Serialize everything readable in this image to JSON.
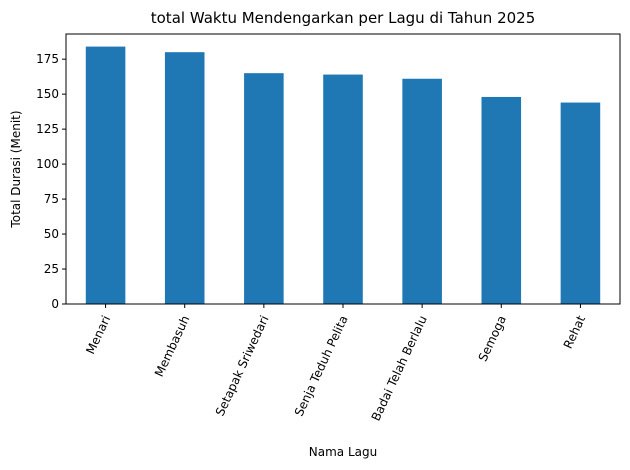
{
  "chart_data": {
    "type": "bar",
    "title": "total Waktu Mendengarkan per Lagu di Tahun 2025",
    "xlabel": "Nama Lagu",
    "ylabel": "Total Durasi (Menit)",
    "categories": [
      "Menari",
      "Membasuh",
      "Setapak Sriwedari",
      "Senja Teduh Pelita",
      "Badai Telah Berlalu",
      "Semoga",
      "Rehat"
    ],
    "values": [
      184,
      180,
      165,
      164,
      161,
      148,
      144
    ],
    "ylim": [
      0,
      193
    ],
    "yticks": [
      0,
      25,
      50,
      75,
      100,
      125,
      150,
      175
    ],
    "grid": false,
    "legend": false,
    "colors": {
      "bar": "#1f77b4"
    }
  }
}
